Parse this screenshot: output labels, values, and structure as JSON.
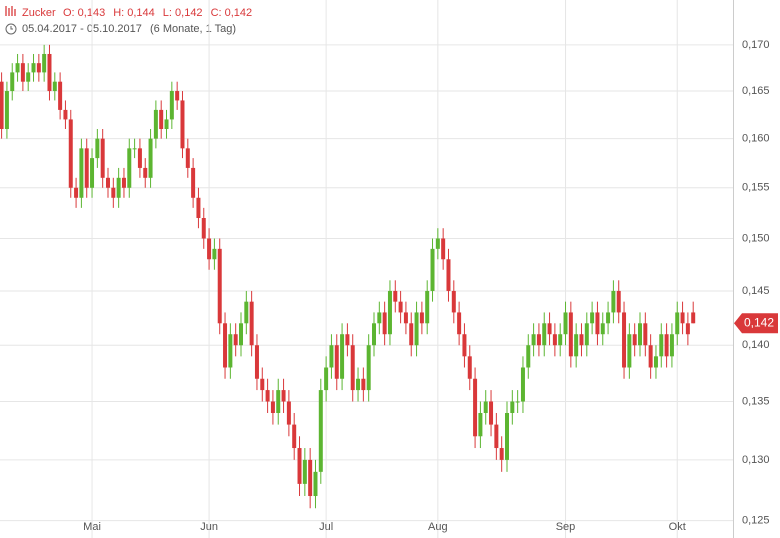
{
  "chart_data": {
    "type": "candlestick",
    "title": "Zucker",
    "ohlc_labels": [
      "O: 0,143",
      "H: 0,144",
      "L: 0,142",
      "C: 0,142"
    ],
    "subtitle": "05.04.2017 - 05.10.2017",
    "period": "(6 Monate, 1 Tag)",
    "last_label": "0,142",
    "log_scale": true,
    "grid": true,
    "up_color": "#5cb531",
    "down_color": "#d9383a",
    "ylim": [
      0.1236,
      0.175
    ],
    "yticks": [
      {
        "value": 0.125,
        "label": "0,125"
      },
      {
        "value": 0.13,
        "label": "0,130"
      },
      {
        "value": 0.135,
        "label": "0,135"
      },
      {
        "value": 0.14,
        "label": "0,140"
      },
      {
        "value": 0.145,
        "label": "0,145"
      },
      {
        "value": 0.15,
        "label": "0,150"
      },
      {
        "value": 0.155,
        "label": "0,155"
      },
      {
        "value": 0.16,
        "label": "0,160"
      },
      {
        "value": 0.165,
        "label": "0,165"
      },
      {
        "value": 0.17,
        "label": "0,170"
      }
    ],
    "categories": [
      null,
      null,
      null,
      null,
      null,
      null,
      null,
      null,
      null,
      null,
      null,
      null,
      null,
      null,
      null,
      null,
      null,
      "Mai",
      null,
      null,
      null,
      null,
      null,
      null,
      null,
      null,
      null,
      null,
      null,
      null,
      null,
      null,
      null,
      null,
      null,
      null,
      null,
      null,
      null,
      "Jun",
      null,
      null,
      null,
      null,
      null,
      null,
      null,
      null,
      null,
      null,
      null,
      null,
      null,
      null,
      null,
      null,
      null,
      null,
      null,
      null,
      null,
      "Jul",
      null,
      null,
      null,
      null,
      null,
      null,
      null,
      null,
      null,
      null,
      null,
      null,
      null,
      null,
      null,
      null,
      null,
      null,
      null,
      null,
      "Aug",
      null,
      null,
      null,
      null,
      null,
      null,
      null,
      null,
      null,
      null,
      null,
      null,
      null,
      null,
      null,
      null,
      null,
      null,
      null,
      null,
      null,
      null,
      null,
      "Sep",
      null,
      null,
      null,
      null,
      null,
      null,
      null,
      null,
      null,
      null,
      null,
      null,
      null,
      null,
      null,
      null,
      null,
      null,
      null,
      null,
      "Okt",
      null,
      null,
      null
    ],
    "open": [
      0.166,
      0.161,
      0.165,
      0.167,
      0.168,
      0.166,
      0.167,
      0.168,
      0.167,
      0.169,
      0.165,
      0.166,
      0.163,
      0.162,
      0.155,
      0.154,
      0.159,
      0.155,
      0.158,
      0.16,
      0.156,
      0.155,
      0.154,
      0.156,
      0.155,
      0.159,
      0.159,
      0.157,
      0.156,
      0.16,
      0.163,
      0.161,
      0.162,
      0.165,
      0.164,
      0.159,
      0.157,
      0.154,
      0.152,
      0.15,
      0.148,
      0.149,
      0.142,
      0.138,
      0.141,
      0.14,
      0.142,
      0.144,
      0.14,
      0.137,
      0.136,
      0.135,
      0.134,
      0.136,
      0.135,
      0.133,
      0.131,
      0.128,
      0.13,
      0.127,
      0.129,
      0.136,
      0.138,
      0.14,
      0.137,
      0.141,
      0.14,
      0.136,
      0.137,
      0.136,
      0.14,
      0.142,
      0.143,
      0.141,
      0.145,
      0.144,
      0.143,
      0.142,
      0.14,
      0.143,
      0.142,
      0.145,
      0.149,
      0.15,
      0.148,
      0.145,
      0.143,
      0.141,
      0.139,
      0.137,
      0.132,
      0.134,
      0.135,
      0.133,
      0.131,
      0.13,
      0.134,
      0.135,
      0.135,
      0.138,
      0.14,
      0.141,
      0.14,
      0.142,
      0.141,
      0.14,
      0.141,
      0.143,
      0.139,
      0.141,
      0.14,
      0.142,
      0.143,
      0.141,
      0.142,
      0.143,
      0.145,
      0.143,
      0.138,
      0.141,
      0.14,
      0.142,
      0.14,
      0.138,
      0.139,
      0.141,
      0.139,
      0.141,
      0.143,
      0.142,
      0.143
    ],
    "high": [
      0.167,
      0.166,
      0.168,
      0.169,
      0.169,
      0.168,
      0.169,
      0.169,
      0.17,
      0.17,
      0.167,
      0.167,
      0.164,
      0.163,
      0.156,
      0.16,
      0.16,
      0.159,
      0.161,
      0.161,
      0.157,
      0.156,
      0.157,
      0.157,
      0.16,
      0.16,
      0.16,
      0.158,
      0.161,
      0.164,
      0.164,
      0.163,
      0.166,
      0.166,
      0.165,
      0.16,
      0.158,
      0.155,
      0.153,
      0.151,
      0.15,
      0.15,
      0.143,
      0.142,
      0.142,
      0.143,
      0.145,
      0.145,
      0.141,
      0.138,
      0.137,
      0.136,
      0.137,
      0.137,
      0.136,
      0.134,
      0.132,
      0.131,
      0.131,
      0.13,
      0.137,
      0.139,
      0.141,
      0.141,
      0.142,
      0.142,
      0.141,
      0.138,
      0.138,
      0.141,
      0.143,
      0.144,
      0.144,
      0.146,
      0.146,
      0.145,
      0.144,
      0.143,
      0.144,
      0.144,
      0.146,
      0.15,
      0.151,
      0.151,
      0.149,
      0.146,
      0.144,
      0.142,
      0.14,
      0.138,
      0.135,
      0.136,
      0.136,
      0.134,
      0.132,
      0.135,
      0.136,
      0.136,
      0.139,
      0.141,
      0.142,
      0.142,
      0.143,
      0.143,
      0.142,
      0.142,
      0.144,
      0.144,
      0.142,
      0.142,
      0.143,
      0.144,
      0.144,
      0.143,
      0.144,
      0.146,
      0.146,
      0.144,
      0.142,
      0.142,
      0.143,
      0.143,
      0.141,
      0.14,
      0.142,
      0.142,
      0.142,
      0.144,
      0.144,
      0.143,
      0.144
    ],
    "low": [
      0.16,
      0.16,
      0.164,
      0.166,
      0.165,
      0.165,
      0.166,
      0.166,
      0.166,
      0.164,
      0.164,
      0.162,
      0.161,
      0.154,
      0.153,
      0.153,
      0.154,
      0.154,
      0.157,
      0.155,
      0.154,
      0.153,
      0.153,
      0.154,
      0.154,
      0.158,
      0.156,
      0.155,
      0.155,
      0.159,
      0.16,
      0.16,
      0.161,
      0.163,
      0.158,
      0.156,
      0.153,
      0.151,
      0.149,
      0.147,
      0.147,
      0.141,
      0.137,
      0.137,
      0.139,
      0.139,
      0.141,
      0.139,
      0.136,
      0.135,
      0.134,
      0.133,
      0.133,
      0.134,
      0.132,
      0.13,
      0.127,
      0.127,
      0.126,
      0.126,
      0.128,
      0.135,
      0.137,
      0.136,
      0.136,
      0.139,
      0.135,
      0.135,
      0.135,
      0.135,
      0.139,
      0.141,
      0.14,
      0.14,
      0.143,
      0.142,
      0.141,
      0.139,
      0.139,
      0.141,
      0.141,
      0.144,
      0.148,
      0.147,
      0.144,
      0.142,
      0.14,
      0.138,
      0.136,
      0.131,
      0.131,
      0.133,
      0.132,
      0.13,
      0.129,
      0.129,
      0.133,
      0.134,
      0.134,
      0.137,
      0.139,
      0.139,
      0.139,
      0.14,
      0.139,
      0.139,
      0.14,
      0.138,
      0.138,
      0.139,
      0.139,
      0.141,
      0.14,
      0.14,
      0.141,
      0.142,
      0.142,
      0.137,
      0.137,
      0.139,
      0.139,
      0.139,
      0.137,
      0.137,
      0.138,
      0.138,
      0.138,
      0.14,
      0.141,
      0.14,
      0.142
    ],
    "close": [
      0.161,
      0.165,
      0.167,
      0.168,
      0.166,
      0.167,
      0.168,
      0.167,
      0.169,
      0.165,
      0.166,
      0.163,
      0.162,
      0.155,
      0.154,
      0.159,
      0.155,
      0.158,
      0.16,
      0.156,
      0.155,
      0.154,
      0.156,
      0.155,
      0.159,
      0.159,
      0.157,
      0.156,
      0.16,
      0.163,
      0.161,
      0.162,
      0.165,
      0.164,
      0.159,
      0.157,
      0.154,
      0.152,
      0.15,
      0.148,
      0.149,
      0.142,
      0.138,
      0.141,
      0.14,
      0.142,
      0.144,
      0.14,
      0.137,
      0.136,
      0.135,
      0.134,
      0.136,
      0.135,
      0.133,
      0.131,
      0.128,
      0.13,
      0.127,
      0.129,
      0.136,
      0.138,
      0.14,
      0.137,
      0.141,
      0.14,
      0.136,
      0.137,
      0.136,
      0.14,
      0.142,
      0.143,
      0.141,
      0.145,
      0.144,
      0.143,
      0.142,
      0.14,
      0.143,
      0.142,
      0.145,
      0.149,
      0.15,
      0.148,
      0.145,
      0.143,
      0.141,
      0.139,
      0.137,
      0.132,
      0.134,
      0.135,
      0.133,
      0.131,
      0.13,
      0.134,
      0.135,
      0.135,
      0.138,
      0.14,
      0.141,
      0.14,
      0.142,
      0.141,
      0.14,
      0.141,
      0.143,
      0.139,
      0.141,
      0.14,
      0.142,
      0.143,
      0.141,
      0.142,
      0.143,
      0.145,
      0.143,
      0.138,
      0.141,
      0.14,
      0.142,
      0.14,
      0.138,
      0.139,
      0.141,
      0.139,
      0.141,
      0.143,
      0.142,
      0.141,
      0.142
    ]
  }
}
